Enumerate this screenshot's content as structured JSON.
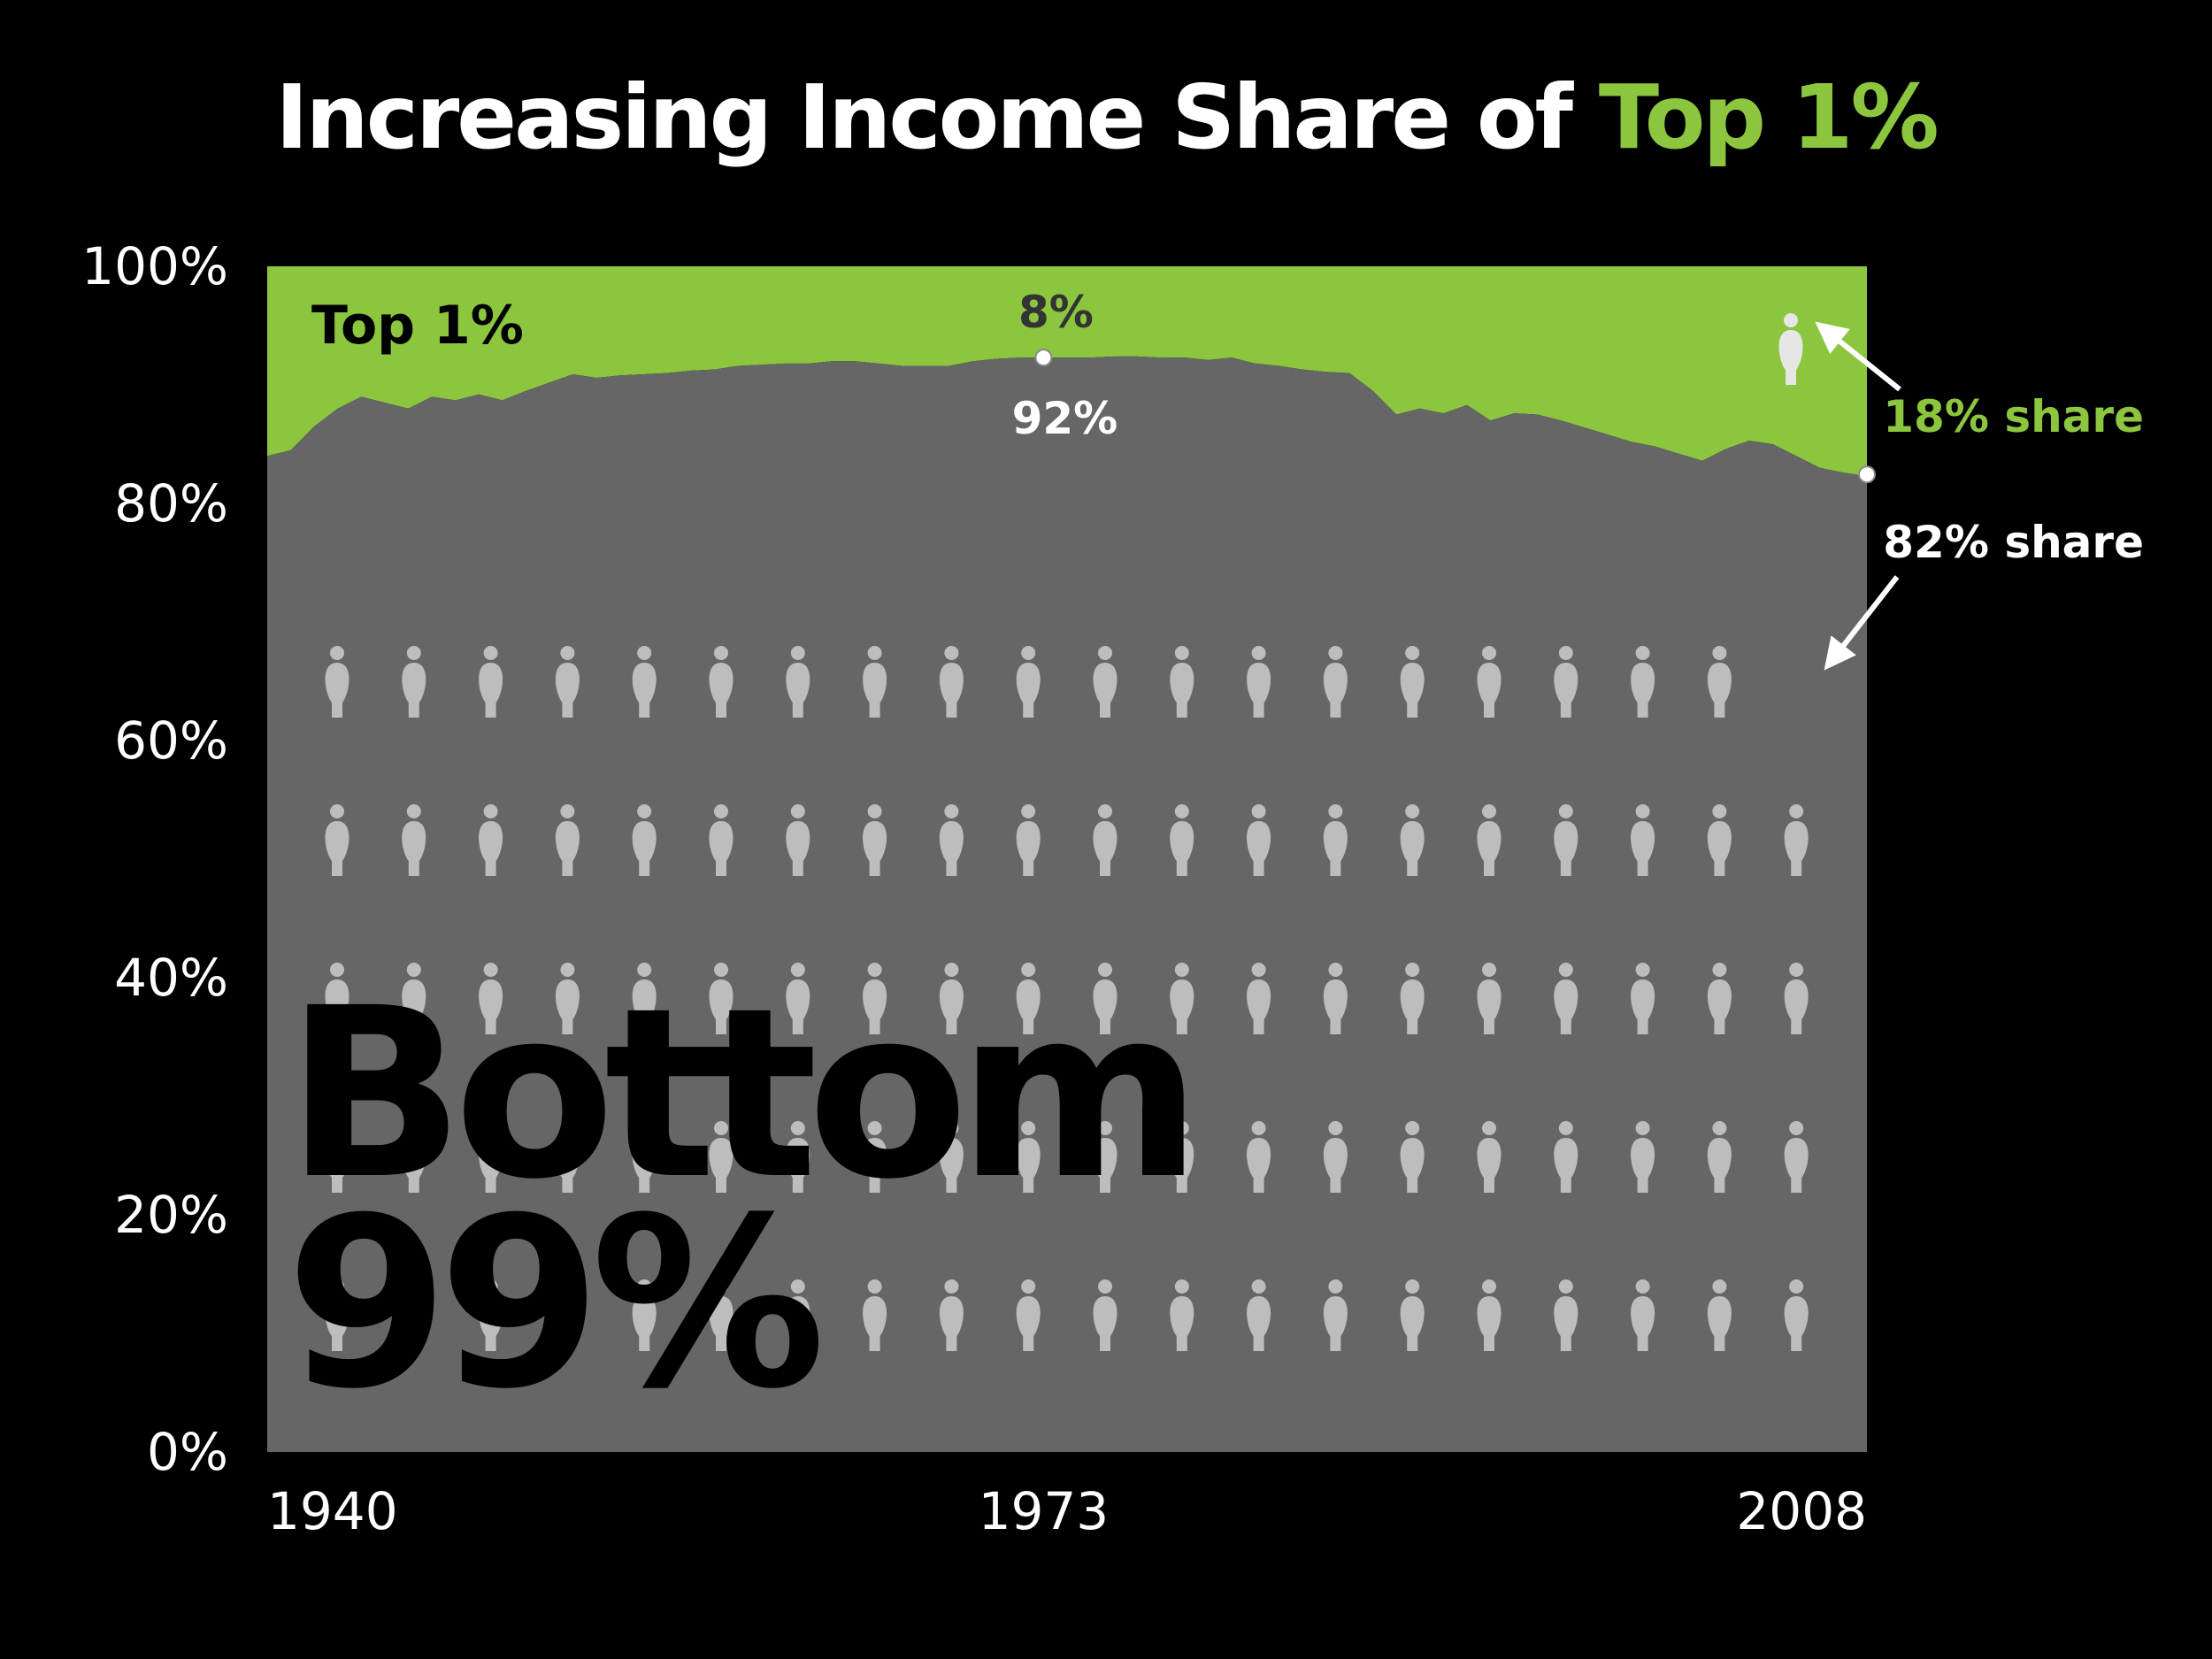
{
  "title": {
    "prefix": "Increasing Income Share of",
    "highlight": "Top 1%"
  },
  "colors": {
    "top": "#8cc63f",
    "bottom": "#666666",
    "background": "#000000",
    "figure": "#bdbdbd",
    "figure_top": "#e6e6e6"
  },
  "chart_data": {
    "type": "area",
    "stacked": true,
    "x": [
      1940,
      1941,
      1942,
      1943,
      1944,
      1945,
      1946,
      1947,
      1948,
      1949,
      1950,
      1951,
      1952,
      1953,
      1954,
      1955,
      1956,
      1957,
      1958,
      1959,
      1960,
      1961,
      1962,
      1963,
      1964,
      1965,
      1966,
      1967,
      1968,
      1969,
      1970,
      1971,
      1972,
      1973,
      1974,
      1975,
      1976,
      1977,
      1978,
      1979,
      1980,
      1981,
      1982,
      1983,
      1984,
      1985,
      1986,
      1987,
      1988,
      1989,
      1990,
      1991,
      1992,
      1993,
      1994,
      1995,
      1996,
      1997,
      1998,
      1999,
      2000,
      2001,
      2002,
      2003,
      2004,
      2005,
      2006,
      2007,
      2008
    ],
    "series": [
      {
        "name": "Bottom 99%",
        "values": [
          84.0,
          84.5,
          86.5,
          88.0,
          89.0,
          88.5,
          88.0,
          89.0,
          88.7,
          89.2,
          88.7,
          89.5,
          90.2,
          90.9,
          90.6,
          90.8,
          90.9,
          91.0,
          91.2,
          91.3,
          91.6,
          91.7,
          91.8,
          91.8,
          92.0,
          92.0,
          91.8,
          91.6,
          91.6,
          91.6,
          92.0,
          92.2,
          92.3,
          92.3,
          92.3,
          92.3,
          92.4,
          92.4,
          92.3,
          92.3,
          92.1,
          92.3,
          91.8,
          91.6,
          91.3,
          91.1,
          91.0,
          89.5,
          87.5,
          88.0,
          87.6,
          88.3,
          87.0,
          87.6,
          87.5,
          87.0,
          86.4,
          85.8,
          85.2,
          84.8,
          84.2,
          83.6,
          84.6,
          85.3,
          85.0,
          84.0,
          83.0,
          82.6,
          82.3
        ]
      },
      {
        "name": "Top 1%",
        "values": [
          16.0,
          15.5,
          13.5,
          12.0,
          11.0,
          11.5,
          12.0,
          11.0,
          11.3,
          10.8,
          11.3,
          10.5,
          9.8,
          9.1,
          9.4,
          9.2,
          9.1,
          9.0,
          8.8,
          8.7,
          8.4,
          8.3,
          8.2,
          8.2,
          8.0,
          8.0,
          8.2,
          8.4,
          8.4,
          8.4,
          8.0,
          7.8,
          7.7,
          7.7,
          7.7,
          7.7,
          7.6,
          7.6,
          7.7,
          7.7,
          7.9,
          7.7,
          8.2,
          8.4,
          8.7,
          8.9,
          9.0,
          10.5,
          12.5,
          12.0,
          12.4,
          11.7,
          13.0,
          12.4,
          12.5,
          13.0,
          13.6,
          14.2,
          14.8,
          15.2,
          15.8,
          16.4,
          15.4,
          14.7,
          15.0,
          16.0,
          17.0,
          17.4,
          17.7
        ]
      }
    ],
    "xticks": [
      "1940",
      "1973",
      "2008"
    ],
    "yticks": [
      "0%",
      "20%",
      "40%",
      "60%",
      "80%",
      "100%"
    ],
    "ylim": [
      0,
      100
    ],
    "xlim": [
      1940,
      2008
    ],
    "annotations": {
      "top_label": "Top 1%",
      "bottom_label_line1": "Bottom",
      "bottom_label_line2": "99%",
      "mid_top": "8%",
      "mid_bottom": "92%",
      "mid_year": 1973,
      "end_top": "18% share",
      "end_bottom": "82% share",
      "end_value": 82
    },
    "figures": {
      "rows": 5,
      "cols": 20,
      "top_count": 1
    }
  }
}
